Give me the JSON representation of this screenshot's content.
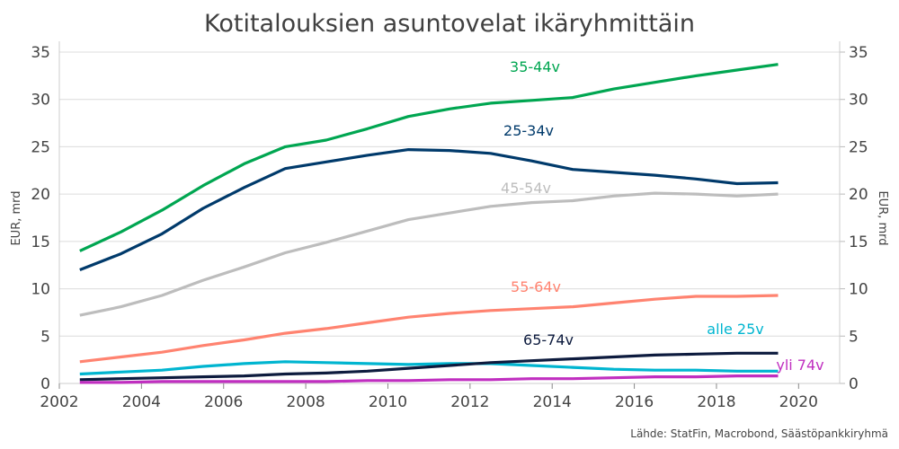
{
  "chart_data": {
    "type": "line",
    "title": "Kotitalouksien asuntovelat ikäryhmittäin",
    "ylabel": "EUR, mrd",
    "ylabel_right": "EUR, mrd",
    "source": "Lähde: StatFin, Macrobond, Säästöpankkiryhmä",
    "xlim": [
      2002,
      2021
    ],
    "ylim": [
      0,
      35
    ],
    "xticks": [
      "2002",
      "2004",
      "2006",
      "2008",
      "2010",
      "2012",
      "2014",
      "2016",
      "2018",
      "2020"
    ],
    "yticks": [
      "0",
      "5",
      "10",
      "15",
      "20",
      "25",
      "30",
      "35"
    ],
    "grid": true,
    "x": [
      2002.5,
      2003.5,
      2004.5,
      2005.5,
      2006.5,
      2007.5,
      2008.5,
      2009.5,
      2010.5,
      2011.5,
      2012.5,
      2013.5,
      2014.5,
      2015.5,
      2016.5,
      2017.5,
      2018.5,
      2019.5
    ],
    "series": [
      {
        "name": "35-44v",
        "color": "#00A651",
        "values": [
          14.0,
          16.0,
          18.3,
          20.9,
          23.2,
          25.0,
          25.7,
          26.9,
          28.2,
          29.0,
          29.6,
          29.9,
          30.2,
          31.1,
          31.8,
          32.5,
          33.1,
          33.7
        ]
      },
      {
        "name": "25-34v",
        "color": "#003A6B",
        "values": [
          12.0,
          13.7,
          15.8,
          18.5,
          20.7,
          22.7,
          23.4,
          24.1,
          24.7,
          24.6,
          24.3,
          23.5,
          22.6,
          22.3,
          22.0,
          21.6,
          21.1,
          21.2
        ]
      },
      {
        "name": "45-54v",
        "color": "#BDBDBD",
        "values": [
          7.2,
          8.1,
          9.3,
          10.9,
          12.3,
          13.8,
          14.9,
          16.1,
          17.3,
          18.0,
          18.7,
          19.1,
          19.3,
          19.8,
          20.1,
          20.0,
          19.8,
          20.0
        ]
      },
      {
        "name": "55-64v",
        "color": "#FF8370",
        "values": [
          2.3,
          2.8,
          3.3,
          4.0,
          4.6,
          5.3,
          5.8,
          6.4,
          7.0,
          7.4,
          7.7,
          7.9,
          8.1,
          8.5,
          8.9,
          9.2,
          9.2,
          9.3
        ]
      },
      {
        "name": "alle 25v",
        "color": "#00B5D0",
        "values": [
          1.0,
          1.2,
          1.4,
          1.8,
          2.1,
          2.3,
          2.2,
          2.1,
          2.0,
          2.1,
          2.1,
          1.9,
          1.7,
          1.5,
          1.4,
          1.4,
          1.3,
          1.3
        ]
      },
      {
        "name": "65-74v",
        "color": "#0D1B3E",
        "values": [
          0.4,
          0.5,
          0.6,
          0.7,
          0.8,
          1.0,
          1.1,
          1.3,
          1.6,
          1.9,
          2.2,
          2.4,
          2.6,
          2.8,
          3.0,
          3.1,
          3.2,
          3.2
        ]
      },
      {
        "name": "yli 74v",
        "color": "#C02FC0",
        "values": [
          0.1,
          0.1,
          0.2,
          0.2,
          0.2,
          0.2,
          0.2,
          0.3,
          0.3,
          0.4,
          0.4,
          0.5,
          0.5,
          0.6,
          0.7,
          0.7,
          0.8,
          0.8
        ]
      }
    ]
  }
}
